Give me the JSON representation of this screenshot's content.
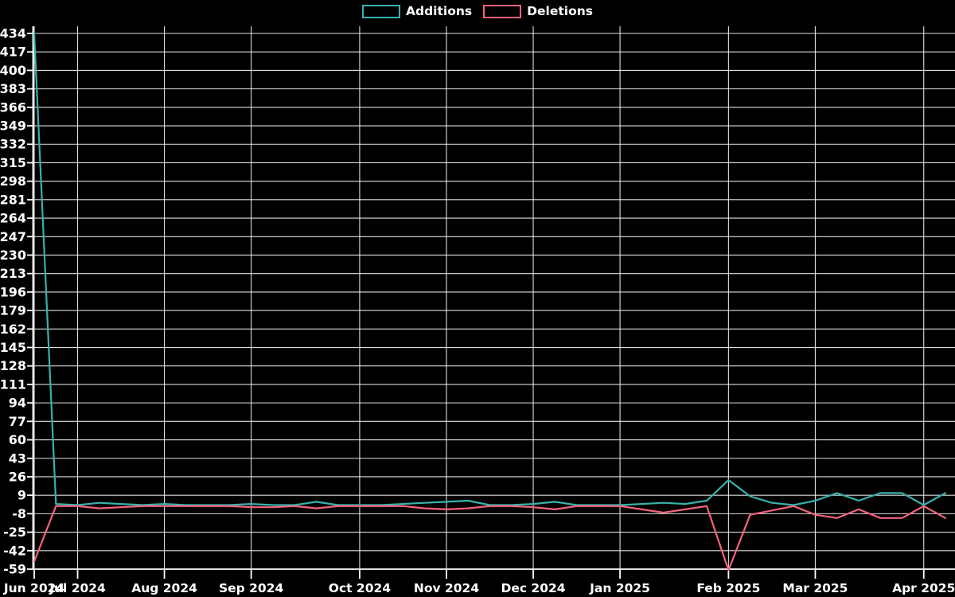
{
  "chart_data": {
    "type": "line",
    "title": "",
    "background": "#000000",
    "grid": true,
    "legend_position": "top-center",
    "x_axis": {
      "unit": "week-index",
      "num_points": 43,
      "tick_labels": [
        "Jun 2024",
        "Jul 2024",
        "Aug 2024",
        "Sep 2024",
        "Oct 2024",
        "Nov 2024",
        "Dec 2024",
        "Jan 2025",
        "Feb 2025",
        "Mar 2025",
        "Apr 2025"
      ],
      "tick_weeks": [
        0,
        2,
        6,
        10,
        15,
        19,
        23,
        27,
        32,
        36,
        41
      ]
    },
    "y_axis": {
      "tick_step": 17,
      "tick_labels": [
        434,
        417,
        400,
        383,
        366,
        349,
        332,
        315,
        298,
        281,
        264,
        247,
        230,
        213,
        196,
        179,
        162,
        145,
        128,
        111,
        94,
        77,
        60,
        43,
        26,
        9,
        -8,
        -25,
        -42,
        -59
      ],
      "range_shown": [
        -59,
        434
      ]
    },
    "series": [
      {
        "name": "Additions",
        "color": "#38b2ab",
        "values": [
          434,
          1,
          0,
          2,
          1,
          0,
          1,
          0,
          0,
          0,
          1,
          0,
          0,
          3,
          0,
          0,
          0,
          1,
          2,
          3,
          4,
          0,
          0,
          1,
          3,
          0,
          0,
          0,
          1,
          2,
          1,
          4,
          23,
          8,
          2,
          0,
          4,
          11,
          4,
          11,
          11,
          0,
          11
        ]
      },
      {
        "name": "Deletions",
        "color": "#f4637e",
        "values": [
          -52,
          -1,
          -1,
          -3,
          -2,
          -1,
          -1,
          -1,
          -1,
          -1,
          -2,
          -2,
          -1,
          -3,
          -1,
          -1,
          -1,
          -1,
          -3,
          -4,
          -3,
          -1,
          -1,
          -2,
          -4,
          -1,
          -1,
          -1,
          -4,
          -7,
          -4,
          -1,
          -60,
          -9,
          -5,
          -1,
          -9,
          -12,
          -4,
          -12,
          -12,
          -1,
          -12
        ]
      }
    ],
    "axis_color": "#ffffff",
    "gridline_color": "#f2f2f2",
    "label_color": "#ffffff"
  },
  "legend": {
    "items": [
      {
        "label": "Additions",
        "color": "#38b2ab"
      },
      {
        "label": "Deletions",
        "color": "#f4637e"
      }
    ]
  }
}
